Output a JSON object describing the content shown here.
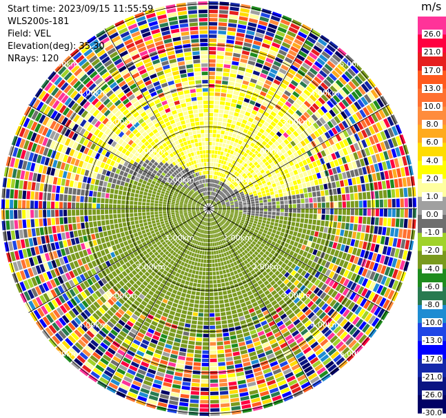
{
  "info": {
    "start_time": "Start time: 2023/09/15 11:55:59",
    "station": "WLS200s-181",
    "field": "Field: VEL",
    "elevation": "Elevation(deg): 35.30",
    "nrays": "NRays: 120"
  },
  "colorbar": {
    "unit": "m/s",
    "bins": [
      {
        "label": "26.0",
        "color": "#ff3399"
      },
      {
        "label": "21.0",
        "color": "#ff0040"
      },
      {
        "label": "17.0",
        "color": "#e61e1e"
      },
      {
        "label": "13.0",
        "color": "#ff5a1e"
      },
      {
        "label": "10.0",
        "color": "#ff7030"
      },
      {
        "label": "8.0",
        "color": "#ff8c3c"
      },
      {
        "label": "6.0",
        "color": "#ffaa1e"
      },
      {
        "label": "4.0",
        "color": "#ffdc00"
      },
      {
        "label": "2.0",
        "color": "#ffff00"
      },
      {
        "label": "1.0",
        "color": "#ffffa0"
      },
      {
        "label": "0.0",
        "color": "#a0a0a0"
      },
      {
        "label": "-1.0",
        "color": "#6e6e6e"
      },
      {
        "label": "-2.0",
        "color": "#a0d22a"
      },
      {
        "label": "-4.0",
        "color": "#7a9a1e"
      },
      {
        "label": "-6.0",
        "color": "#1e8c1e"
      },
      {
        "label": "-8.0",
        "color": "#287a50"
      },
      {
        "label": "-10.0",
        "color": "#1e8cd2"
      },
      {
        "label": "-13.0",
        "color": "#1e46e6"
      },
      {
        "label": "-17.0",
        "color": "#0000ff"
      },
      {
        "label": "-21.0",
        "color": "#1428aa"
      },
      {
        "label": "-26.0",
        "color": "#0a1482"
      },
      {
        "label": "-30.0",
        "color": "#000064"
      }
    ]
  },
  "chart_data": {
    "type": "heatmap",
    "projection": "polar PPI (plan position indicator)",
    "field": "VEL",
    "units": "m/s",
    "range_rings_km": [
      1.0,
      2.0,
      3.0,
      4.0,
      5.0
    ],
    "ring_labels": [
      "1.00km",
      "2.00km",
      "3.00km",
      "4.00km",
      "5.00km"
    ],
    "azimuth_spokes_deg": [
      0,
      30,
      60,
      90,
      120,
      150,
      180,
      210,
      240,
      270,
      300,
      330
    ],
    "pattern": {
      "inner_north_velocity_ms": 2.0,
      "inner_south_velocity_ms": -3.0,
      "near_zero_band": "grey, winding between the north and south halves near the center",
      "outer_range": "noisy, all colors"
    }
  }
}
